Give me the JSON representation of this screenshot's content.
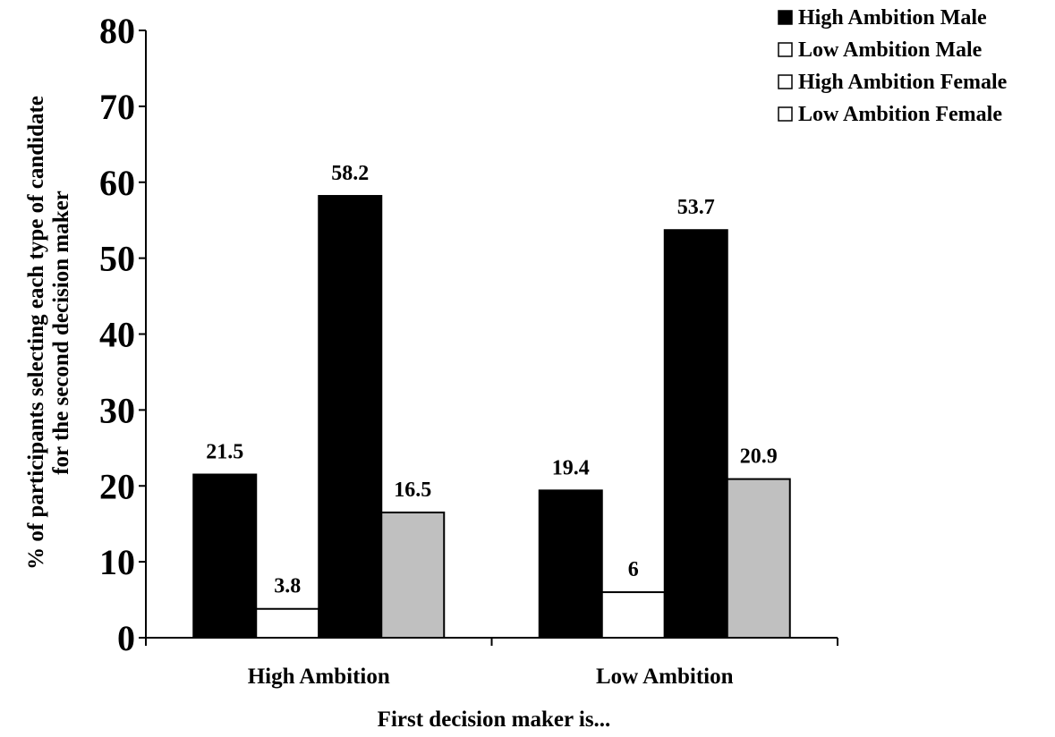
{
  "chart_data": {
    "type": "bar",
    "categories": [
      "High Ambition",
      "Low Ambition"
    ],
    "series": [
      {
        "name": "High Ambition Male",
        "values": [
          21.5,
          19.4
        ],
        "color": "#000000"
      },
      {
        "name": "Low Ambition Male",
        "values": [
          3.8,
          6
        ],
        "color": "#ffffff"
      },
      {
        "name": "High Ambition Female",
        "values": [
          58.2,
          53.7
        ],
        "color": "#000000"
      },
      {
        "name": "Low Ambition Female",
        "values": [
          16.5,
          20.9
        ],
        "color": "#c0c0c0"
      }
    ],
    "data_labels": [
      [
        "21.5",
        "19.4"
      ],
      [
        "3.8",
        "6"
      ],
      [
        "58.2",
        "53.7"
      ],
      [
        "16.5",
        "20.9"
      ]
    ],
    "legend_colors": [
      "#000000",
      "#ffffff",
      "#ffffff",
      "#ffffff"
    ],
    "xlabel": "First decision maker is...",
    "ylabel_lines": [
      "% of participants selecting each type of candidate",
      "for the second decision maker"
    ],
    "ylim": [
      0,
      80
    ],
    "yticks": [
      "0",
      "10",
      "20",
      "30",
      "40",
      "50",
      "60",
      "70",
      "80"
    ],
    "grid": false,
    "legend_position": "top-right"
  }
}
